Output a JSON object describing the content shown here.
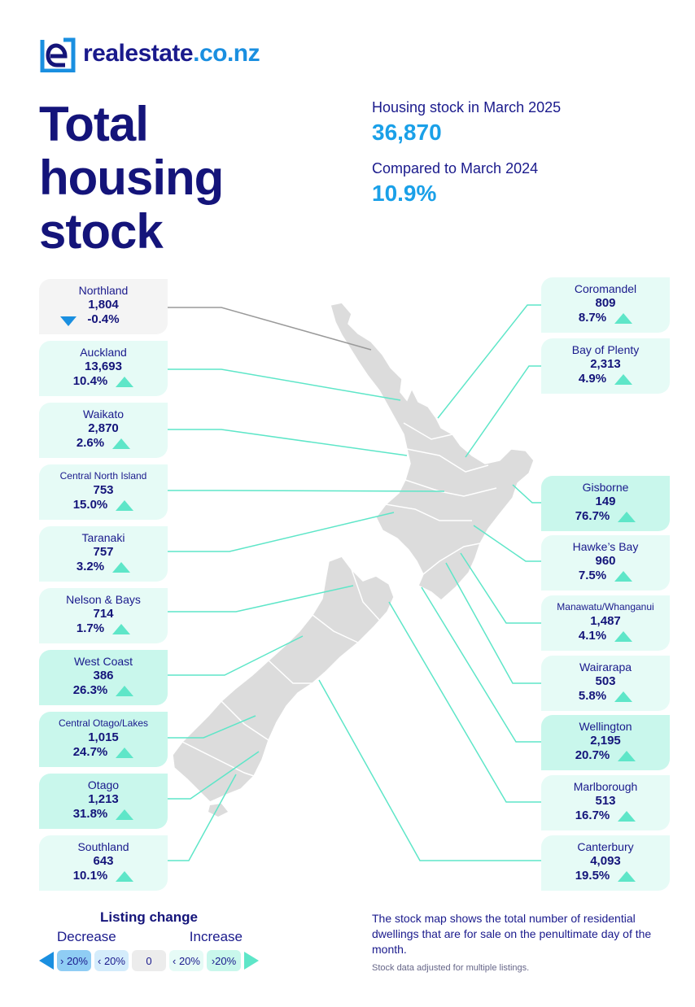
{
  "brand": {
    "name": "realestate",
    "tld": ".co.nz"
  },
  "title": "Total housing stock",
  "stats": {
    "stock_label": "Housing stock in March 2025",
    "stock_value": "36,870",
    "compare_label": "Compared to March 2024",
    "compare_value": "10.9%"
  },
  "regions_left": [
    {
      "name": "Northland",
      "stock": "1,804",
      "change": "-0.4%",
      "direction": "down"
    },
    {
      "name": "Auckland",
      "stock": "13,693",
      "change": "10.4%",
      "direction": "up"
    },
    {
      "name": "Waikato",
      "stock": "2,870",
      "change": "2.6%",
      "direction": "up"
    },
    {
      "name": "Central North Island",
      "stock": "753",
      "change": "15.0%",
      "direction": "up"
    },
    {
      "name": "Taranaki",
      "stock": "757",
      "change": "3.2%",
      "direction": "up"
    },
    {
      "name": "Nelson & Bays",
      "stock": "714",
      "change": "1.7%",
      "direction": "up"
    },
    {
      "name": "West Coast",
      "stock": "386",
      "change": "26.3%",
      "direction": "up"
    },
    {
      "name": "Central Otago/Lakes",
      "stock": "1,015",
      "change": "24.7%",
      "direction": "up"
    },
    {
      "name": "Otago",
      "stock": "1,213",
      "change": "31.8%",
      "direction": "up"
    },
    {
      "name": "Southland",
      "stock": "643",
      "change": "10.1%",
      "direction": "up"
    }
  ],
  "regions_right": [
    {
      "name": "Coromandel",
      "stock": "809",
      "change": "8.7%",
      "direction": "up"
    },
    {
      "name": "Bay of Plenty",
      "stock": "2,313",
      "change": "4.9%",
      "direction": "up"
    },
    {
      "name": "Gisborne",
      "stock": "149",
      "change": "76.7%",
      "direction": "up"
    },
    {
      "name": "Hawke’s Bay",
      "stock": "960",
      "change": "7.5%",
      "direction": "up"
    },
    {
      "name": "Manawatu/Whanganui",
      "stock": "1,487",
      "change": "4.1%",
      "direction": "up"
    },
    {
      "name": "Wairarapa",
      "stock": "503",
      "change": "5.8%",
      "direction": "up"
    },
    {
      "name": "Wellington",
      "stock": "2,195",
      "change": "20.7%",
      "direction": "up"
    },
    {
      "name": "Marlborough",
      "stock": "513",
      "change": "16.7%",
      "direction": "up"
    },
    {
      "name": "Canterbury",
      "stock": "4,093",
      "change": "19.5%",
      "direction": "up"
    }
  ],
  "legend": {
    "title": "Listing change",
    "decrease": "Decrease",
    "increase": "Increase",
    "chips": [
      "› 20%",
      "‹ 20%",
      "0",
      "‹ 20%",
      "›20%"
    ]
  },
  "note": "The stock map shows the total number of residential dwellings that are for sale on the penultimate day of the month.",
  "note_small": "Stock data adjusted for multiple listings.",
  "colors": {
    "navy": "#14147a",
    "blue": "#1aa0e8",
    "teal": "#5ee6c8",
    "map": "#dcdcdc"
  }
}
